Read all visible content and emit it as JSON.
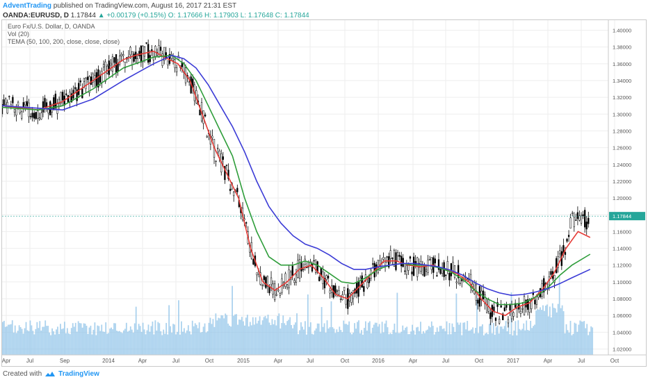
{
  "header": {
    "author": "AdventTrading",
    "published_text": " published on TradingView.com, August 16, 2017 21:31 EST",
    "symbol": "OANDA:EURUSD, D",
    "last": "1.17844",
    "change": "▲ +0.00179 (+0.15%)",
    "ohlc": "O: 1.17666  H: 1.17903  L: 1.17648  C: 1.17844"
  },
  "legend": {
    "title": "Euro Fx/U.S. Dollar, D, OANDA",
    "vol": "Vol (20)",
    "tema": "TEMA (50, 100, 200, close, close, close)"
  },
  "footer": {
    "created_with": "Created with",
    "brand": "TradingView"
  },
  "last_price_label": "1.17844",
  "colors": {
    "ma_fast": "#e53935",
    "ma_mid": "#2e9d3a",
    "ma_slow": "#3b3bd6",
    "candle": "#000000",
    "volume": "#8fc3e8",
    "grid": "#eeeeee",
    "last_price_tag": "#26a69a"
  },
  "chart_data": {
    "type": "line",
    "x_ticks": [
      "Apr",
      "Jul",
      "Sep",
      "2014",
      "Apr",
      "Jul",
      "Oct",
      "2015",
      "Apr",
      "Jul",
      "Oct",
      "2016",
      "Apr",
      "Jul",
      "Oct",
      "2017",
      "Apr",
      "Jul",
      "Oct"
    ],
    "y_ticks": [
      "1.40000",
      "1.38000",
      "1.36000",
      "1.34000",
      "1.32000",
      "1.30000",
      "1.28000",
      "1.26000",
      "1.24000",
      "1.22000",
      "1.20000",
      "1.18000",
      "1.16000",
      "1.14000",
      "1.12000",
      "1.10000",
      "1.08000",
      "1.06000",
      "1.04000",
      "1.02000"
    ],
    "ylim": [
      1.013,
      1.412
    ],
    "x_time_range": [
      "2013-04-01",
      "2017-10-15"
    ],
    "series": [
      {
        "points": [
          [
            0,
            1.31
          ],
          [
            0.06,
            1.305
          ],
          [
            0.1,
            1.315
          ],
          [
            0.15,
            1.34
          ],
          [
            0.2,
            1.365
          ],
          [
            0.22,
            1.37
          ],
          [
            0.25,
            1.375
          ],
          [
            0.27,
            1.367
          ],
          [
            0.29,
            1.36
          ],
          [
            0.31,
            1.34
          ],
          [
            0.33,
            1.3
          ],
          [
            0.35,
            1.26
          ],
          [
            0.37,
            1.23
          ],
          [
            0.39,
            1.2
          ],
          [
            0.41,
            1.14
          ],
          [
            0.43,
            1.1
          ],
          [
            0.45,
            1.09
          ],
          [
            0.47,
            1.1
          ],
          [
            0.49,
            1.115
          ],
          [
            0.51,
            1.12
          ],
          [
            0.53,
            1.105
          ],
          [
            0.55,
            1.085
          ],
          [
            0.57,
            1.08
          ],
          [
            0.59,
            1.095
          ],
          [
            0.61,
            1.11
          ],
          [
            0.63,
            1.125
          ],
          [
            0.65,
            1.125
          ],
          [
            0.67,
            1.12
          ],
          [
            0.69,
            1.118
          ],
          [
            0.71,
            1.12
          ],
          [
            0.73,
            1.115
          ],
          [
            0.75,
            1.11
          ],
          [
            0.77,
            1.1
          ],
          [
            0.79,
            1.08
          ],
          [
            0.81,
            1.065
          ],
          [
            0.83,
            1.06
          ],
          [
            0.85,
            1.07
          ],
          [
            0.87,
            1.075
          ],
          [
            0.89,
            1.09
          ],
          [
            0.91,
            1.11
          ],
          [
            0.93,
            1.14
          ],
          [
            0.95,
            1.16
          ],
          [
            0.97,
            1.153
          ]
        ]
      },
      {
        "points": [
          [
            0,
            1.308
          ],
          [
            0.06,
            1.305
          ],
          [
            0.1,
            1.31
          ],
          [
            0.15,
            1.33
          ],
          [
            0.2,
            1.355
          ],
          [
            0.22,
            1.36
          ],
          [
            0.25,
            1.368
          ],
          [
            0.28,
            1.37
          ],
          [
            0.3,
            1.36
          ],
          [
            0.32,
            1.34
          ],
          [
            0.34,
            1.31
          ],
          [
            0.36,
            1.28
          ],
          [
            0.38,
            1.25
          ],
          [
            0.4,
            1.2
          ],
          [
            0.42,
            1.16
          ],
          [
            0.44,
            1.13
          ],
          [
            0.46,
            1.12
          ],
          [
            0.48,
            1.12
          ],
          [
            0.5,
            1.125
          ],
          [
            0.52,
            1.12
          ],
          [
            0.54,
            1.11
          ],
          [
            0.56,
            1.1
          ],
          [
            0.58,
            1.098
          ],
          [
            0.6,
            1.105
          ],
          [
            0.62,
            1.115
          ],
          [
            0.64,
            1.12
          ],
          [
            0.66,
            1.122
          ],
          [
            0.68,
            1.12
          ],
          [
            0.7,
            1.12
          ],
          [
            0.72,
            1.117
          ],
          [
            0.74,
            1.112
          ],
          [
            0.76,
            1.103
          ],
          [
            0.78,
            1.09
          ],
          [
            0.8,
            1.08
          ],
          [
            0.82,
            1.073
          ],
          [
            0.84,
            1.073
          ],
          [
            0.86,
            1.075
          ],
          [
            0.88,
            1.082
          ],
          [
            0.9,
            1.093
          ],
          [
            0.92,
            1.108
          ],
          [
            0.94,
            1.12
          ],
          [
            0.97,
            1.133
          ]
        ]
      },
      {
        "points": [
          [
            0,
            1.31
          ],
          [
            0.06,
            1.307
          ],
          [
            0.1,
            1.305
          ],
          [
            0.15,
            1.318
          ],
          [
            0.2,
            1.34
          ],
          [
            0.22,
            1.348
          ],
          [
            0.25,
            1.36
          ],
          [
            0.28,
            1.37
          ],
          [
            0.3,
            1.366
          ],
          [
            0.32,
            1.355
          ],
          [
            0.34,
            1.335
          ],
          [
            0.36,
            1.31
          ],
          [
            0.38,
            1.285
          ],
          [
            0.4,
            1.255
          ],
          [
            0.42,
            1.22
          ],
          [
            0.44,
            1.19
          ],
          [
            0.46,
            1.17
          ],
          [
            0.48,
            1.155
          ],
          [
            0.5,
            1.145
          ],
          [
            0.52,
            1.14
          ],
          [
            0.54,
            1.132
          ],
          [
            0.56,
            1.122
          ],
          [
            0.58,
            1.115
          ],
          [
            0.6,
            1.115
          ],
          [
            0.62,
            1.118
          ],
          [
            0.64,
            1.12
          ],
          [
            0.66,
            1.122
          ],
          [
            0.68,
            1.122
          ],
          [
            0.7,
            1.12
          ],
          [
            0.72,
            1.118
          ],
          [
            0.74,
            1.114
          ],
          [
            0.76,
            1.108
          ],
          [
            0.78,
            1.099
          ],
          [
            0.8,
            1.092
          ],
          [
            0.82,
            1.087
          ],
          [
            0.84,
            1.084
          ],
          [
            0.86,
            1.085
          ],
          [
            0.88,
            1.088
          ],
          [
            0.9,
            1.092
          ],
          [
            0.92,
            1.098
          ],
          [
            0.94,
            1.105
          ],
          [
            0.97,
            1.115
          ]
        ]
      }
    ],
    "last_price": 1.17844
  }
}
